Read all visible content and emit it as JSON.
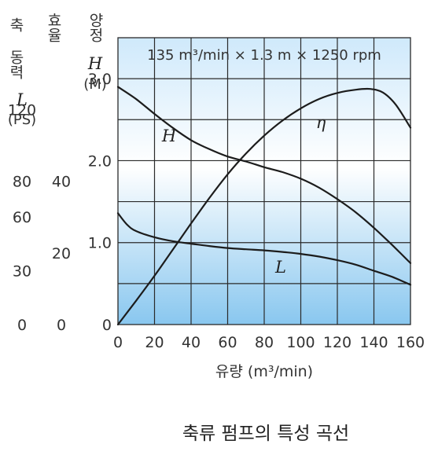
{
  "chart_data": {
    "type": "line",
    "banner": "135 m³/min × 1.3 m × 1250 rpm",
    "caption": "축류 펌프의 특성 곡선",
    "xlabel": "유량 (m³/min)",
    "x_ticks": [
      "0",
      "20",
      "40",
      "60",
      "80",
      "100",
      "120",
      "140",
      "160"
    ],
    "xlim": [
      0,
      160
    ],
    "axes": [
      {
        "key": "H",
        "header": "양정",
        "symbol": "H",
        "unit": "(M)",
        "ticks": [
          "0",
          "1.0",
          "2.0",
          "3.0"
        ],
        "range": [
          0,
          3.5
        ]
      },
      {
        "key": "eta",
        "header": "효율",
        "symbol": "",
        "unit": "",
        "ticks": [
          "0",
          "20",
          "40"
        ],
        "range": [
          0,
          80
        ]
      },
      {
        "key": "L",
        "header": "축 동력",
        "symbol": "L",
        "unit": "(PS)",
        "ticks": [
          "0",
          "30",
          "60",
          "80",
          "120"
        ],
        "range": [
          0,
          160
        ]
      }
    ],
    "grid": true,
    "series": [
      {
        "name": "H",
        "label": "H",
        "x": [
          0,
          10,
          20,
          30,
          40,
          50,
          60,
          70,
          80,
          90,
          100,
          110,
          120,
          130,
          140,
          150,
          160
        ],
        "y": [
          2.9,
          2.75,
          2.57,
          2.4,
          2.25,
          2.14,
          2.05,
          1.99,
          1.92,
          1.86,
          1.78,
          1.67,
          1.53,
          1.37,
          1.18,
          0.97,
          0.75
        ]
      },
      {
        "name": "η",
        "label": "η",
        "x": [
          0,
          10,
          20,
          30,
          40,
          50,
          60,
          70,
          80,
          90,
          100,
          110,
          120,
          130,
          138,
          145,
          152,
          160
        ],
        "y": [
          0,
          6.7,
          13.6,
          20.9,
          28.2,
          35.3,
          41.9,
          47.7,
          52.7,
          56.9,
          60.3,
          62.9,
          64.6,
          65.5,
          65.7,
          64.7,
          61.3,
          54.9
        ]
      },
      {
        "name": "L",
        "label": "L",
        "x": [
          0,
          5,
          10,
          20,
          30,
          40,
          50,
          60,
          70,
          80,
          90,
          100,
          110,
          120,
          130,
          140,
          150,
          160
        ],
        "y": [
          62.1,
          55.7,
          52.1,
          48.7,
          46.5,
          45.1,
          43.8,
          42.7,
          42.0,
          41.4,
          40.5,
          39.4,
          37.9,
          35.9,
          33.4,
          30.0,
          26.6,
          22.2
        ]
      }
    ],
    "curve_color": "#1c1c1c",
    "gradient": [
      "#cfe9fb",
      "#ffffff",
      "#89c7ef"
    ],
    "grid_color": "#2a2a2a",
    "text_color": "#333333"
  }
}
